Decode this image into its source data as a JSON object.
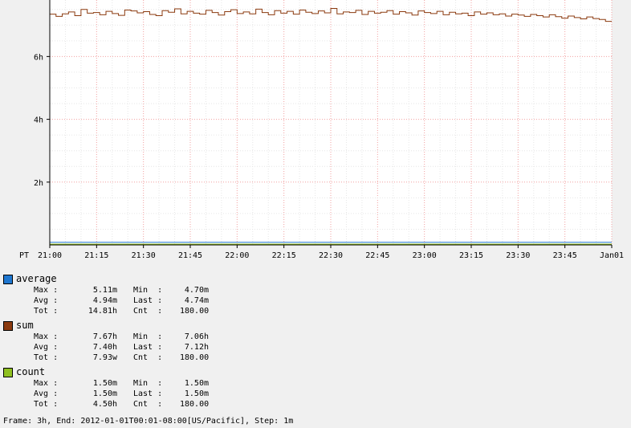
{
  "chart_data": {
    "type": "line",
    "timezone_label": "PT",
    "x_ticks": [
      "21:00",
      "21:15",
      "21:30",
      "21:45",
      "22:00",
      "22:15",
      "22:30",
      "22:45",
      "23:00",
      "23:15",
      "23:30",
      "23:45",
      "Jan01"
    ],
    "y_ticks": [
      "2h",
      "4h",
      "6h"
    ],
    "y_tick_values_hours": [
      2,
      4,
      6
    ],
    "ylim_hours": [
      0,
      7.8
    ],
    "xlim_minutes": [
      0,
      180
    ],
    "grid": true,
    "series": [
      {
        "name": "average",
        "color": "#1f77d0",
        "style": "flat",
        "value_hours": 0.082,
        "stats": {
          "max": "5.11m",
          "min": "4.70m",
          "avg": "4.94m",
          "last": "4.74m",
          "tot": "14.81h",
          "cnt": "180.00"
        }
      },
      {
        "name": "sum",
        "color": "#8b3a0f",
        "style": "step",
        "step_minutes": 2,
        "values_hours": [
          7.35,
          7.28,
          7.36,
          7.42,
          7.3,
          7.5,
          7.38,
          7.4,
          7.33,
          7.44,
          7.37,
          7.31,
          7.48,
          7.45,
          7.39,
          7.43,
          7.34,
          7.3,
          7.46,
          7.41,
          7.52,
          7.36,
          7.44,
          7.38,
          7.35,
          7.47,
          7.4,
          7.32,
          7.43,
          7.49,
          7.37,
          7.42,
          7.36,
          7.51,
          7.4,
          7.33,
          7.46,
          7.38,
          7.44,
          7.35,
          7.48,
          7.41,
          7.37,
          7.45,
          7.39,
          7.53,
          7.36,
          7.42,
          7.4,
          7.47,
          7.34,
          7.44,
          7.38,
          7.41,
          7.46,
          7.35,
          7.43,
          7.39,
          7.32,
          7.45,
          7.4,
          7.37,
          7.44,
          7.33,
          7.41,
          7.36,
          7.38,
          7.3,
          7.42,
          7.35,
          7.39,
          7.33,
          7.36,
          7.29,
          7.35,
          7.32,
          7.28,
          7.34,
          7.3,
          7.26,
          7.33,
          7.27,
          7.22,
          7.29,
          7.24,
          7.2,
          7.26,
          7.21,
          7.18,
          7.12
        ]
      },
      {
        "name": "count",
        "color": "#8fc020",
        "style": "flat",
        "value_hours": 0.025,
        "stats": {
          "max": "1.50m",
          "min": "1.50m",
          "avg": "1.50m",
          "last": "1.50m",
          "tot": "4.50h",
          "cnt": "180.00"
        }
      }
    ]
  },
  "legend": [
    {
      "name": "average",
      "color": "#1f77d0",
      "max": "5.11m",
      "min": "4.70m",
      "avg": "4.94m",
      "last": "4.74m",
      "tot": "14.81h",
      "cnt": "180.00"
    },
    {
      "name": "sum",
      "color": "#8b3a0f",
      "max": "7.67h",
      "min": "7.06h",
      "avg": "7.40h",
      "last": "7.12h",
      "tot": "7.93w",
      "cnt": "180.00"
    },
    {
      "name": "count",
      "color": "#8fc020",
      "max": "1.50m",
      "min": "1.50m",
      "avg": "1.50m",
      "last": "1.50m",
      "tot": "4.50h",
      "cnt": "180.00"
    }
  ],
  "labels": {
    "max": "Max :",
    "min": "Min  :",
    "avg": "Avg :",
    "last": "Last :",
    "tot": "Tot :",
    "cnt": "Cnt  :"
  },
  "footer": "Frame: 3h, End: 2012-01-01T00:01-08:00[US/Pacific], Step: 1m"
}
